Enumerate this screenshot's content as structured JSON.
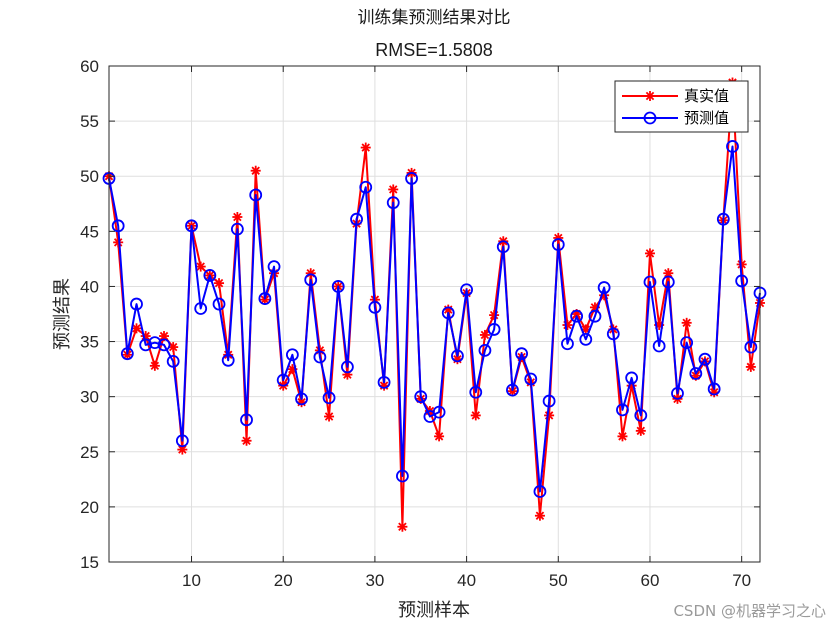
{
  "chart_data": {
    "type": "line",
    "title": "训练集预测结果对比",
    "subtitle": "RMSE=1.5808",
    "xlabel": "预测样本",
    "ylabel": "预测结果",
    "xlim": [
      1,
      72
    ],
    "ylim": [
      15,
      60
    ],
    "xticks": [
      10,
      20,
      30,
      40,
      50,
      60,
      70
    ],
    "yticks": [
      15,
      20,
      25,
      30,
      35,
      40,
      45,
      50,
      55,
      60
    ],
    "grid": true,
    "legend_position": "top-right",
    "x": [
      1,
      2,
      3,
      4,
      5,
      6,
      7,
      8,
      9,
      10,
      11,
      12,
      13,
      14,
      15,
      16,
      17,
      18,
      19,
      20,
      21,
      22,
      23,
      24,
      25,
      26,
      27,
      28,
      29,
      30,
      31,
      32,
      33,
      34,
      35,
      36,
      37,
      38,
      39,
      40,
      41,
      42,
      43,
      44,
      45,
      46,
      47,
      48,
      49,
      50,
      51,
      52,
      53,
      54,
      55,
      56,
      57,
      58,
      59,
      60,
      61,
      62,
      63,
      64,
      65,
      66,
      67,
      68,
      69,
      70,
      71,
      72
    ],
    "series": [
      {
        "name": "真实值",
        "color": "#ff0000",
        "marker": "asterisk",
        "values": [
          50.0,
          44.0,
          33.8,
          36.2,
          35.5,
          32.8,
          35.5,
          34.5,
          25.2,
          45.5,
          41.8,
          41.0,
          40.3,
          33.8,
          46.3,
          26.0,
          50.5,
          38.8,
          41.2,
          31.0,
          32.5,
          29.5,
          41.2,
          34.2,
          28.2,
          40.0,
          32.0,
          45.7,
          52.6,
          38.8,
          31.0,
          48.8,
          18.2,
          50.3,
          29.8,
          28.7,
          26.4,
          37.9,
          33.4,
          39.4,
          28.3,
          35.6,
          37.4,
          44.1,
          30.5,
          33.6,
          31.3,
          19.2,
          28.3,
          44.4,
          36.5,
          37.5,
          36.1,
          38.1,
          39.2,
          36.1,
          26.4,
          31.0,
          26.9,
          43.0,
          36.5,
          41.2,
          29.8,
          36.7,
          31.9,
          33.2,
          30.4,
          46.0,
          58.5,
          42.0,
          32.7,
          38.5
        ]
      },
      {
        "name": "预测值",
        "color": "#0000ff",
        "marker": "circle",
        "values": [
          49.8,
          45.5,
          33.9,
          38.4,
          34.7,
          34.9,
          34.7,
          33.2,
          26.0,
          45.5,
          38.0,
          41.0,
          38.4,
          33.3,
          45.2,
          27.9,
          48.3,
          38.9,
          41.8,
          31.5,
          33.8,
          29.8,
          40.6,
          33.6,
          29.9,
          40.0,
          32.7,
          46.1,
          49.0,
          38.1,
          31.3,
          47.6,
          22.8,
          49.8,
          30.0,
          28.2,
          28.6,
          37.6,
          33.7,
          39.7,
          30.4,
          34.2,
          36.1,
          43.6,
          30.6,
          33.9,
          31.6,
          21.4,
          29.6,
          43.8,
          34.8,
          37.3,
          35.2,
          37.3,
          39.9,
          35.7,
          28.8,
          31.7,
          28.3,
          40.4,
          34.6,
          40.4,
          30.3,
          34.9,
          32.1,
          33.4,
          30.7,
          46.1,
          52.7,
          40.5,
          34.5,
          39.4
        ]
      }
    ]
  },
  "watermark": "CSDN @机器学习之心"
}
